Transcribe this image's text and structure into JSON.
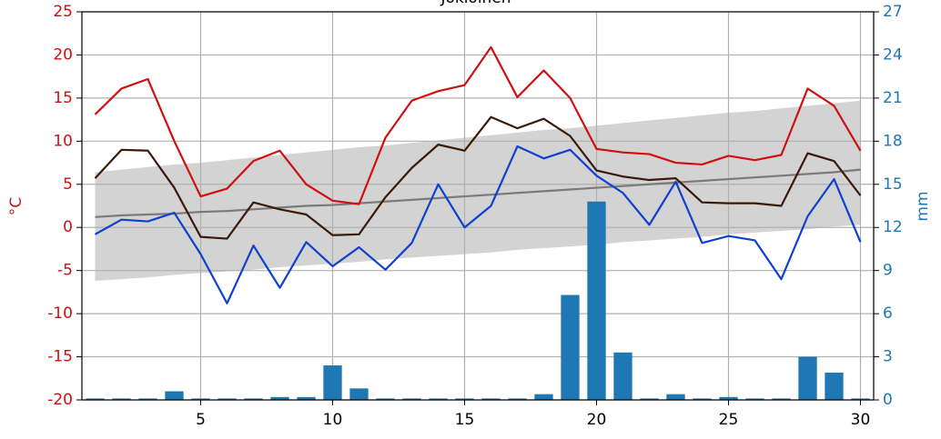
{
  "chart_data": {
    "type": "line",
    "title": "Jokioinen",
    "ylabel": "°C",
    "y2label": "mm",
    "x": [
      1,
      2,
      3,
      4,
      5,
      6,
      7,
      8,
      9,
      10,
      11,
      12,
      13,
      14,
      15,
      16,
      17,
      18,
      19,
      20,
      21,
      22,
      23,
      24,
      25,
      26,
      27,
      28,
      29,
      30
    ],
    "xlim": [
      0.5,
      30.5
    ],
    "xticks": [
      5,
      10,
      15,
      20,
      25,
      30
    ],
    "ylim": [
      -20,
      25
    ],
    "yticks": [
      -20,
      -15,
      -10,
      -5,
      0,
      5,
      10,
      15,
      20,
      25
    ],
    "y2lim": [
      0,
      27
    ],
    "y2ticks": [
      0,
      3,
      6,
      9,
      12,
      15,
      18,
      21,
      24,
      27
    ],
    "grid": true,
    "ycolor": "#d01010",
    "y2color": "#1f77b4",
    "series": [
      {
        "type": "band",
        "color": "#d3d3d3",
        "upper": [
          6.4,
          6.7,
          7.0,
          7.3,
          7.5,
          7.8,
          8.1,
          8.4,
          8.7,
          9.0,
          9.3,
          9.5,
          9.8,
          10.1,
          10.4,
          10.7,
          11.0,
          11.3,
          11.5,
          11.8,
          12.1,
          12.4,
          12.7,
          13.0,
          13.3,
          13.5,
          13.8,
          14.1,
          14.4,
          14.7
        ],
        "lower": [
          -6.2,
          -6.0,
          -5.8,
          -5.5,
          -5.3,
          -5.1,
          -4.9,
          -4.6,
          -4.4,
          -4.2,
          -4.0,
          -3.7,
          -3.5,
          -3.3,
          -3.1,
          -2.9,
          -2.6,
          -2.4,
          -2.2,
          -2.0,
          -1.7,
          -1.5,
          -1.3,
          -1.1,
          -0.8,
          -0.6,
          -0.4,
          -0.2,
          0.1,
          0.3
        ]
      },
      {
        "type": "line",
        "color": "#7a7a7a",
        "values": [
          1.2,
          1.4,
          1.5,
          1.6,
          1.8,
          1.9,
          2.1,
          2.3,
          2.5,
          2.6,
          2.8,
          3.0,
          3.2,
          3.4,
          3.6,
          3.8,
          4.0,
          4.2,
          4.4,
          4.6,
          4.8,
          5.0,
          5.2,
          5.4,
          5.6,
          5.8,
          6.0,
          6.2,
          6.4,
          6.7
        ]
      },
      {
        "type": "bar",
        "axis": "y2",
        "color": "#1f77b4",
        "values": [
          0.1,
          0.1,
          0.1,
          0.6,
          0.1,
          0.1,
          0.1,
          0.2,
          0.2,
          2.4,
          0.8,
          0.1,
          0.1,
          0.1,
          0.1,
          0.1,
          0.1,
          0.4,
          7.3,
          13.8,
          3.3,
          0.1,
          0.4,
          0.1,
          0.2,
          0.1,
          0.1,
          3.0,
          1.9,
          0.1
        ]
      },
      {
        "type": "line",
        "color": "#d01010",
        "values": [
          13.1,
          16.1,
          17.2,
          10,
          3.6,
          4.5,
          7.7,
          8.9,
          5,
          3.1,
          2.7,
          10.4,
          14.7,
          15.8,
          16.5,
          20.9,
          15.1,
          18.2,
          15,
          9.1,
          8.7,
          8.5,
          7.5,
          7.3,
          8.3,
          7.8,
          8.4,
          16.1,
          14.1,
          8.9
        ]
      },
      {
        "type": "line",
        "color": "#3a1a08",
        "values": [
          5.7,
          9,
          8.9,
          4.6,
          -1.1,
          -1.3,
          2.9,
          2.1,
          1.5,
          -0.9,
          -0.8,
          3.5,
          6.9,
          9.6,
          8.9,
          12.8,
          11.5,
          12.6,
          10.6,
          6.6,
          5.9,
          5.5,
          5.7,
          2.9,
          2.8,
          2.8,
          2.5,
          8.6,
          7.7,
          3.7
        ]
      },
      {
        "type": "line",
        "color": "#1040d0",
        "values": [
          -0.8,
          0.9,
          0.7,
          1.7,
          -3.1,
          -8.8,
          -2.1,
          -7,
          -1.7,
          -4.5,
          -2.3,
          -4.9,
          -1.8,
          5,
          0,
          2.5,
          9.4,
          8,
          9,
          6,
          4,
          0.3,
          5.3,
          -1.8,
          -1,
          -1.5,
          -6,
          1.3,
          5.6,
          -1.7
        ]
      }
    ]
  }
}
